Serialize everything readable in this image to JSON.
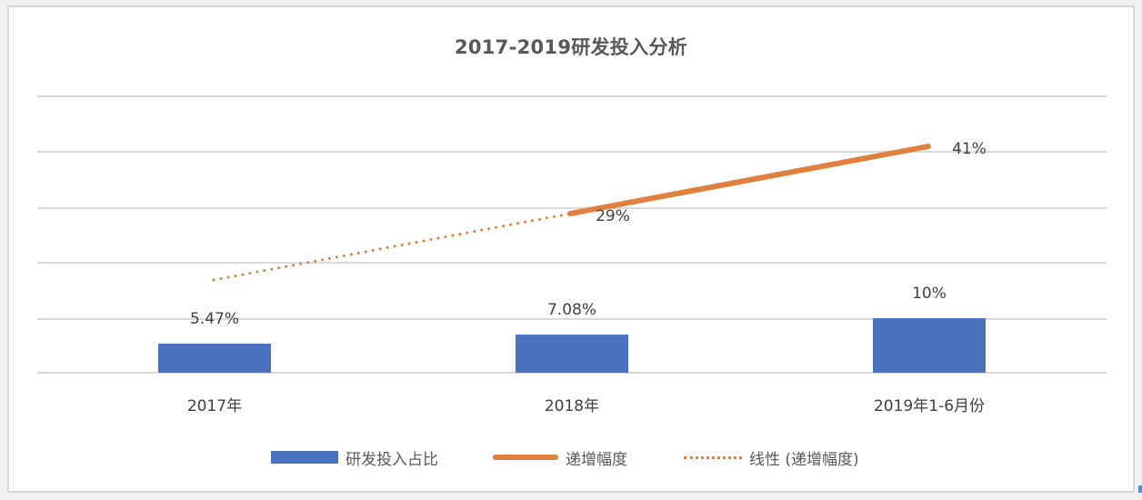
{
  "chart_data": {
    "type": "bar+line",
    "title": "2017-2019研发投入分析",
    "categories": [
      "2017年",
      "2018年",
      "2019年1-6月份"
    ],
    "series": [
      {
        "name": "研发投入占比",
        "type": "bar",
        "color": "#4a72be",
        "values": [
          5.47,
          7.08,
          10
        ],
        "labels": [
          "5.47%",
          "7.08%",
          "10%"
        ]
      },
      {
        "name": "递增幅度",
        "type": "line",
        "color": "#e07f3e",
        "values": [
          null,
          29,
          41
        ],
        "labels": [
          "",
          "29%",
          "41%"
        ]
      },
      {
        "name": "线性 (递增幅度)",
        "type": "trendline-dotted",
        "color": "#e07f3e"
      }
    ],
    "xlabel": "",
    "ylabel": "",
    "grid": true,
    "gridlines_count": 6,
    "legend_position": "bottom"
  },
  "legend": {
    "items": [
      {
        "label": "研发投入占比",
        "swatch": "bar"
      },
      {
        "label": "递增幅度",
        "swatch": "line"
      },
      {
        "label": "线性 (递增幅度)",
        "swatch": "dotted"
      }
    ]
  }
}
